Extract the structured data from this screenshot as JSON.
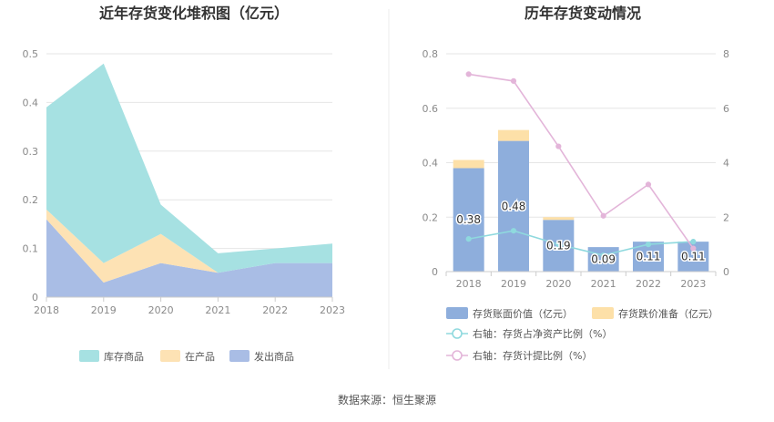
{
  "source": "数据来源：恒生聚源",
  "chart_data": [
    {
      "type": "area",
      "stacked": true,
      "title": "近年存货变化堆积图（亿元）",
      "categories": [
        "2018",
        "2019",
        "2020",
        "2021",
        "2022",
        "2023"
      ],
      "y_ticks": [
        "0",
        "0.1",
        "0.2",
        "0.3",
        "0.4",
        "0.5"
      ],
      "ylim": [
        0,
        0.5
      ],
      "series": [
        {
          "name": "发出商品",
          "values": [
            0.16,
            0.03,
            0.07,
            0.05,
            0.07,
            0.07
          ],
          "color": "#a9bde5"
        },
        {
          "name": "在产品",
          "values": [
            0.02,
            0.04,
            0.06,
            0.0,
            0.0,
            0.0
          ],
          "color": "#fde2b4"
        },
        {
          "name": "库存商品",
          "values": [
            0.21,
            0.41,
            0.06,
            0.04,
            0.03,
            0.04
          ],
          "color": "#a6e1e2"
        }
      ],
      "legend": [
        "库存商品",
        "在产品",
        "发出商品"
      ],
      "legend_position": "bottom"
    },
    {
      "type": "bar",
      "title": "历年存货变动情况",
      "categories": [
        "2018",
        "2019",
        "2020",
        "2021",
        "2022",
        "2023"
      ],
      "y_ticks": [
        "0",
        "0.2",
        "0.4",
        "0.6",
        "0.8"
      ],
      "ylim": [
        0,
        0.8
      ],
      "y2_ticks": [
        "0",
        "2",
        "4",
        "6",
        "8"
      ],
      "y2lim": [
        0,
        8
      ],
      "bars": [
        {
          "name": "存货账面价值（亿元）",
          "values": [
            0.38,
            0.48,
            0.19,
            0.09,
            0.11,
            0.11
          ],
          "labels": [
            "0.38",
            "0.48",
            "0.19",
            "0.09",
            "0.11",
            "0.11"
          ],
          "color": "#8eaedc"
        },
        {
          "name": "存货跌价准备（亿元）",
          "values": [
            0.03,
            0.04,
            0.01,
            0.0,
            0.0,
            0.0
          ],
          "color": "#fde0a8"
        }
      ],
      "lines": [
        {
          "name": "右轴：存货占净资产比例（%）",
          "axis": "right",
          "values": [
            1.2,
            1.5,
            1.0,
            0.6,
            1.0,
            1.1
          ],
          "color": "#8fd9de"
        },
        {
          "name": "右轴：存货计提比例（%）",
          "axis": "right",
          "values": [
            7.25,
            7.0,
            4.6,
            2.05,
            3.2,
            0.85
          ],
          "color": "#e3b5d9"
        }
      ],
      "legend_position": "bottom"
    }
  ]
}
